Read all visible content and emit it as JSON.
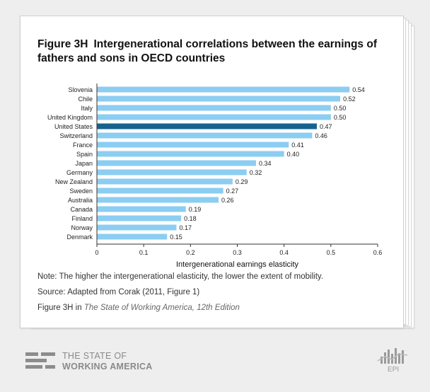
{
  "figure": {
    "number": "Figure 3H",
    "title": "Intergenerational correlations between the earnings of fathers and sons in OECD countries"
  },
  "chart_data": {
    "type": "bar",
    "orientation": "horizontal",
    "categories": [
      "Slovenia",
      "Chile",
      "Italy",
      "United Kingdom",
      "United States",
      "Switzerland",
      "France",
      "Spain",
      "Japan",
      "Germany",
      "New Zealand",
      "Sweden",
      "Australia",
      "Canada",
      "Finland",
      "Norway",
      "Denmark"
    ],
    "values": [
      0.54,
      0.52,
      0.5,
      0.5,
      0.47,
      0.46,
      0.41,
      0.4,
      0.34,
      0.32,
      0.29,
      0.27,
      0.26,
      0.19,
      0.18,
      0.17,
      0.15
    ],
    "value_labels": [
      "0.54",
      "0.52",
      "0.50",
      "0.50",
      "0.47",
      "0.46",
      "0.41",
      "0.40",
      "0.34",
      "0.32",
      "0.29",
      "0.27",
      "0.26",
      "0.19",
      "0.18",
      "0.17",
      "0.15"
    ],
    "highlight": "United States",
    "xlabel": "Intergenerational earnings elasticity",
    "xlim": [
      0,
      0.6
    ],
    "xticks": [
      0,
      0.1,
      0.2,
      0.3,
      0.4,
      0.5,
      0.6
    ],
    "xtick_labels": [
      "0",
      "0.1",
      "0.2",
      "0.3",
      "0.4",
      "0.5",
      "0.6"
    ],
    "colors": {
      "bar": "#8ccdf2",
      "highlight": "#15628f",
      "axis": "#333333"
    }
  },
  "notes": {
    "note": "Note: The higher the intergenerational elasticity, the lower the extent of mobility.",
    "source": "Source: Adapted from Corak (2011, Figure 1)",
    "citation_prefix": "Figure 3H in ",
    "citation_title": "The State of Working America, 12th Edition"
  },
  "footer": {
    "logo_line1": "THE STATE OF",
    "logo_line2": "WORKING AMERICA",
    "epi_label": "EPI"
  }
}
